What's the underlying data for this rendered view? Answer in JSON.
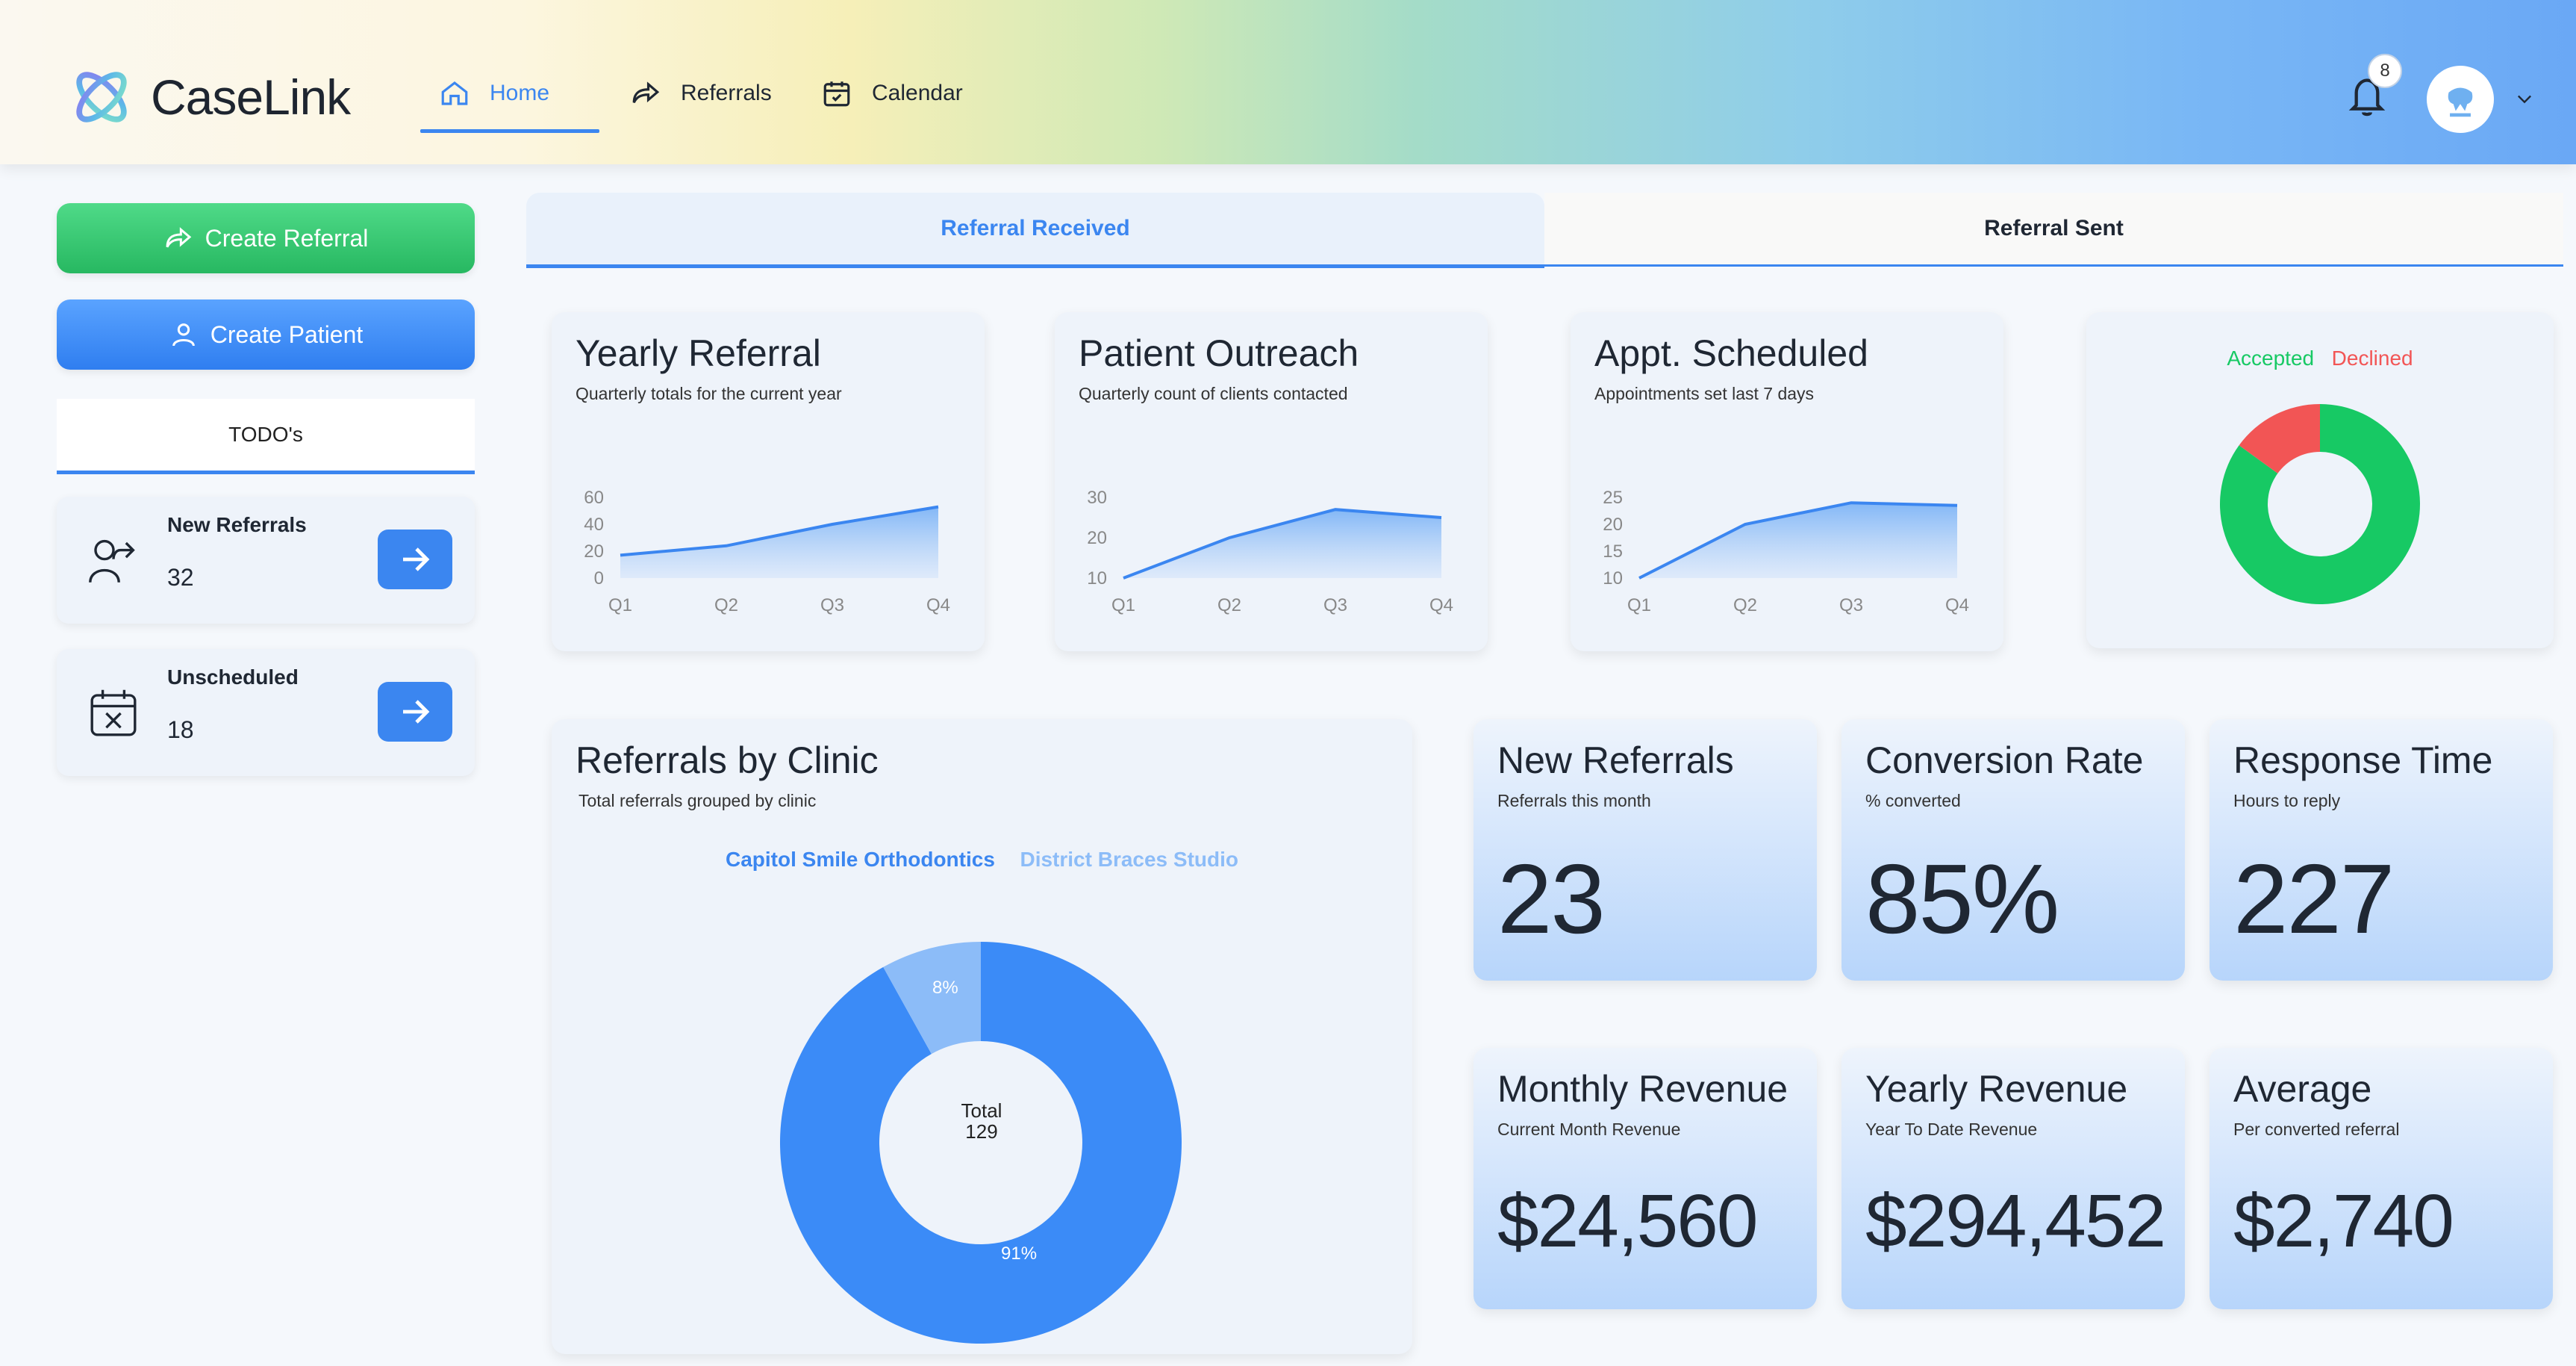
{
  "header": {
    "brand": "CaseLink",
    "nav": [
      {
        "label": "Home",
        "icon": "home-icon",
        "active": true
      },
      {
        "label": "Referrals",
        "icon": "share-icon"
      },
      {
        "label": "Calendar",
        "icon": "calendar-icon"
      }
    ],
    "notifications": "8",
    "accent": "#3b86f0"
  },
  "sidebar": {
    "create_referral": "Create Referral",
    "create_patient": "Create Patient",
    "todo_title": "TODO's",
    "todos": [
      {
        "label": "New Referrals",
        "value": "32",
        "icon": "person-share-icon"
      },
      {
        "label": "Unscheduled",
        "value": "18",
        "icon": "calendar-x-icon"
      }
    ]
  },
  "tabs": [
    {
      "label": "Referral Received",
      "active": true
    },
    {
      "label": "Referral Sent",
      "active": false
    }
  ],
  "mini_charts": [
    {
      "title": "Yearly Referral",
      "subtitle": "Quarterly totals for the current year"
    },
    {
      "title": "Patient Outreach",
      "subtitle": "Quarterly count of clients contacted"
    },
    {
      "title": "Appt. Scheduled",
      "subtitle": "Appointments set last 7 days"
    }
  ],
  "status_legend": {
    "accepted": "Accepted",
    "declined": "Declined",
    "accepted_color": "#17c964",
    "declined_color": "#f25555"
  },
  "clinic": {
    "title": "Referrals by Clinic",
    "subtitle": "Total referrals grouped by clinic",
    "legend": [
      "Capitol Smile Orthodontics",
      "District Braces Studio"
    ],
    "total_label": "Total",
    "total_value": "129",
    "pct_major": "91%",
    "pct_minor": "8%"
  },
  "stats": [
    {
      "title": "New Referrals",
      "subtitle": "Referrals this month",
      "value": "23"
    },
    {
      "title": "Conversion Rate",
      "subtitle": "% converted",
      "value": "85%"
    },
    {
      "title": "Response Time",
      "subtitle": "Hours to reply",
      "value": "227"
    },
    {
      "title": "Monthly Revenue",
      "subtitle": "Current Month Revenue",
      "value": "$24,560"
    },
    {
      "title": "Yearly Revenue",
      "subtitle": "Year To Date Revenue",
      "value": "$294,452"
    },
    {
      "title": "Average",
      "subtitle": "Per converted referral",
      "value": "$2,740"
    }
  ],
  "chart_data": [
    {
      "type": "area",
      "title": "Yearly Referral",
      "categories": [
        "Q1",
        "Q2",
        "Q3",
        "Q4"
      ],
      "values": [
        17,
        24,
        40,
        53
      ],
      "yticks": [
        0,
        20,
        40,
        60
      ],
      "ylim": [
        0,
        60
      ]
    },
    {
      "type": "area",
      "title": "Patient Outreach",
      "categories": [
        "Q1",
        "Q2",
        "Q3",
        "Q4"
      ],
      "values": [
        10,
        20,
        27,
        25
      ],
      "yticks": [
        10,
        20,
        30
      ],
      "ylim": [
        10,
        30
      ]
    },
    {
      "type": "area",
      "title": "Appt. Scheduled",
      "categories": [
        "Q1",
        "Q2",
        "Q3",
        "Q4"
      ],
      "values": [
        10,
        20,
        24,
        23.5
      ],
      "yticks": [
        10,
        15,
        20,
        25
      ],
      "ylim": [
        10,
        25
      ]
    },
    {
      "type": "pie",
      "labels": [
        "Accepted",
        "Declined"
      ],
      "values": [
        85,
        15
      ],
      "colors": [
        "#17c964",
        "#f25555"
      ]
    },
    {
      "type": "pie",
      "title": "Referrals by Clinic",
      "labels": [
        "Capitol Smile Orthodontics",
        "District Braces Studio"
      ],
      "values": [
        91,
        8
      ],
      "colors": [
        "#3b8bf7",
        "#8cbcf8"
      ]
    }
  ]
}
